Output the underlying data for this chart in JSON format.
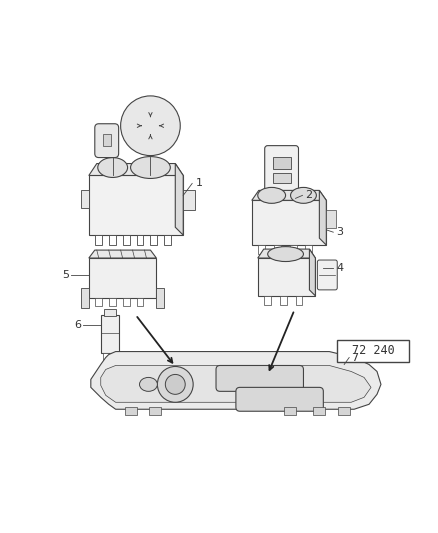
{
  "background_color": "#ffffff",
  "line_color": "#444444",
  "label_color": "#333333",
  "figure_width": 4.38,
  "figure_height": 5.33,
  "dpi": 100,
  "part_number": "72 240",
  "comp1_label": "1",
  "comp2_label": "2",
  "comp3_label": "3",
  "comp4_label": "4",
  "comp5_label": "5",
  "comp6_label": "6",
  "comp7_label": "7"
}
